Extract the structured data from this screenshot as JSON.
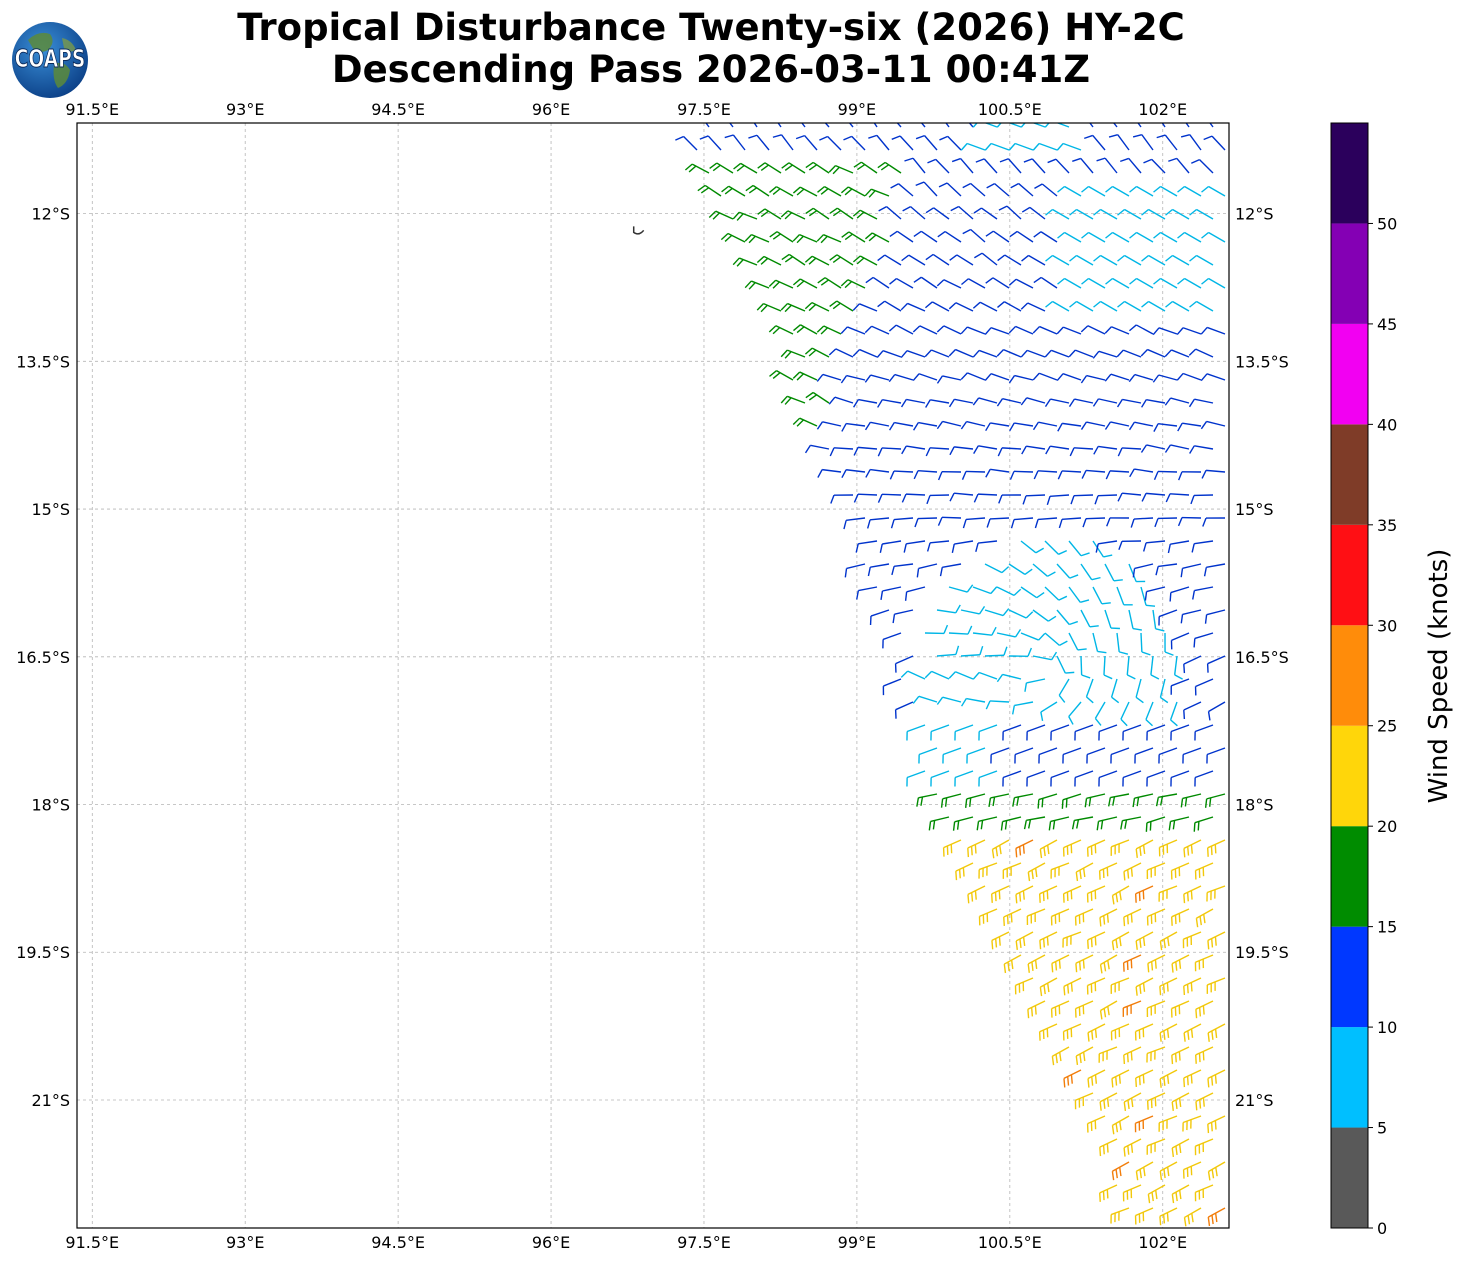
{
  "title": {
    "line1": "Tropical Disturbance Twenty-six (2026) HY-2C",
    "line2": "Descending Pass 2026-03-11 00:41Z"
  },
  "logo": {
    "text": "COAPS"
  },
  "map": {
    "lon_range": [
      91.35,
      102.65
    ],
    "lat_range": [
      -22.3,
      -11.08
    ],
    "lon_ticks": [
      {
        "value": 91.5,
        "label": "91.5°E"
      },
      {
        "value": 93.0,
        "label": "93°E"
      },
      {
        "value": 94.5,
        "label": "94.5°E"
      },
      {
        "value": 96.0,
        "label": "96°E"
      },
      {
        "value": 97.5,
        "label": "97.5°E"
      },
      {
        "value": 99.0,
        "label": "99°E"
      },
      {
        "value": 100.5,
        "label": "100.5°E"
      },
      {
        "value": 102.0,
        "label": "102°E"
      }
    ],
    "lat_ticks": [
      {
        "value": -12.0,
        "label": "12°S"
      },
      {
        "value": -13.5,
        "label": "13.5°S"
      },
      {
        "value": -15.0,
        "label": "15°S"
      },
      {
        "value": -16.5,
        "label": "16.5°S"
      },
      {
        "value": -18.0,
        "label": "18°S"
      },
      {
        "value": -19.5,
        "label": "19.5°S"
      },
      {
        "value": -21.0,
        "label": "21°S"
      }
    ],
    "gridlines": true,
    "island": {
      "lon": 96.85,
      "lat": -12.17
    },
    "swath": {
      "corners": [
        {
          "lon": 97.3,
          "lat": -11.08
        },
        {
          "lon": 102.65,
          "lat": -11.08
        },
        {
          "lon": 102.65,
          "lat": -22.3
        },
        {
          "lon": 101.75,
          "lat": -22.3
        },
        {
          "lon": 99.7,
          "lat": -17.9
        },
        {
          "lon": 99.2,
          "lat": -16.0
        },
        {
          "lon": 98.8,
          "lat": -14.8
        }
      ]
    }
  },
  "colorbar": {
    "label": "Wind Speed (knots)",
    "range": [
      0,
      55
    ],
    "ticks": [
      "0",
      "5",
      "10",
      "15",
      "20",
      "25",
      "30",
      "35",
      "40",
      "45",
      "50"
    ],
    "bins": [
      {
        "from": 0,
        "to": 5,
        "color": "#595959"
      },
      {
        "from": 5,
        "to": 10,
        "color": "#00bfff"
      },
      {
        "from": 10,
        "to": 15,
        "color": "#0038ff"
      },
      {
        "from": 15,
        "to": 20,
        "color": "#008c00"
      },
      {
        "from": 20,
        "to": 25,
        "color": "#ffd60a"
      },
      {
        "from": 25,
        "to": 30,
        "color": "#ff8c0a"
      },
      {
        "from": 30,
        "to": 35,
        "color": "#ff0f14"
      },
      {
        "from": 35,
        "to": 40,
        "color": "#7f3c28"
      },
      {
        "from": 40,
        "to": 45,
        "color": "#f200f2"
      },
      {
        "from": 45,
        "to": 50,
        "color": "#8400b4"
      },
      {
        "from": 50,
        "to": 55,
        "color": "#2b005c"
      }
    ]
  },
  "barb_colors": {
    "cyan": "#00b6e6",
    "blue": "#0033cc",
    "green": "#008a00",
    "yellow": "#f2c80a",
    "orange": "#f27d0a"
  }
}
